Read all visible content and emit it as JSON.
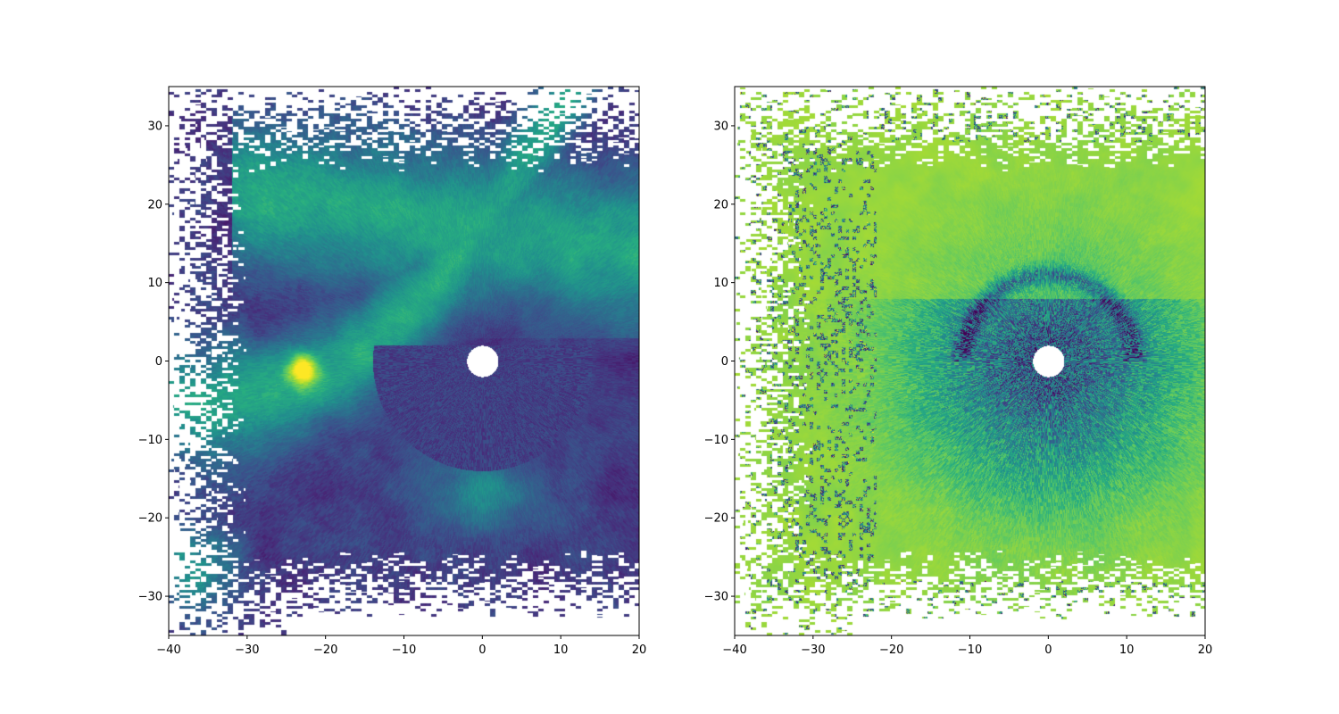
{
  "chart_data": [
    {
      "type": "heatmap",
      "panel": "left",
      "description_of_field": "radar PPI field, viridis colormap, mostly low values with a curved band of higher values (spiral) and a bright core near (-23, -1); missing data (white) in outer corners; white disc at radar origin",
      "colormap": "viridis",
      "xlim": [
        -40,
        20
      ],
      "ylim": [
        -35,
        35
      ],
      "x_ticks": [
        -40,
        -30,
        -20,
        -10,
        0,
        10,
        20
      ],
      "y_ticks": [
        -30,
        -20,
        -10,
        0,
        10,
        20,
        30
      ],
      "x_tick_labels": [
        "−40",
        "−30",
        "−20",
        "−10",
        "0",
        "10",
        "20"
      ],
      "y_tick_labels": [
        "−30",
        "−20",
        "−10",
        "0",
        "10",
        "20",
        "30"
      ],
      "grid": false,
      "features": {
        "center_mask": {
          "x": 0,
          "y": 0,
          "radius": 2
        },
        "bright_core": {
          "x": -23,
          "y": -1
        }
      }
    },
    {
      "type": "heatmap",
      "panel": "right",
      "description_of_field": "radar PPI field, viridis colormap, mostly high (yellow-green) values with a noisy dark radial region around the origin; missing data (white) in outer corners; white disc at radar origin",
      "colormap": "viridis",
      "xlim": [
        -40,
        20
      ],
      "ylim": [
        -35,
        35
      ],
      "x_ticks": [
        -40,
        -30,
        -20,
        -10,
        0,
        10,
        20
      ],
      "y_ticks": [
        -30,
        -20,
        -10,
        0,
        10,
        20,
        30
      ],
      "x_tick_labels": [
        "−40",
        "−30",
        "−20",
        "−10",
        "0",
        "10",
        "20"
      ],
      "y_tick_labels": [
        "−30",
        "−20",
        "−10",
        "0",
        "10",
        "20",
        "30"
      ],
      "grid": false,
      "features": {
        "center_mask": {
          "x": 0,
          "y": 0,
          "radius": 2
        }
      }
    }
  ]
}
